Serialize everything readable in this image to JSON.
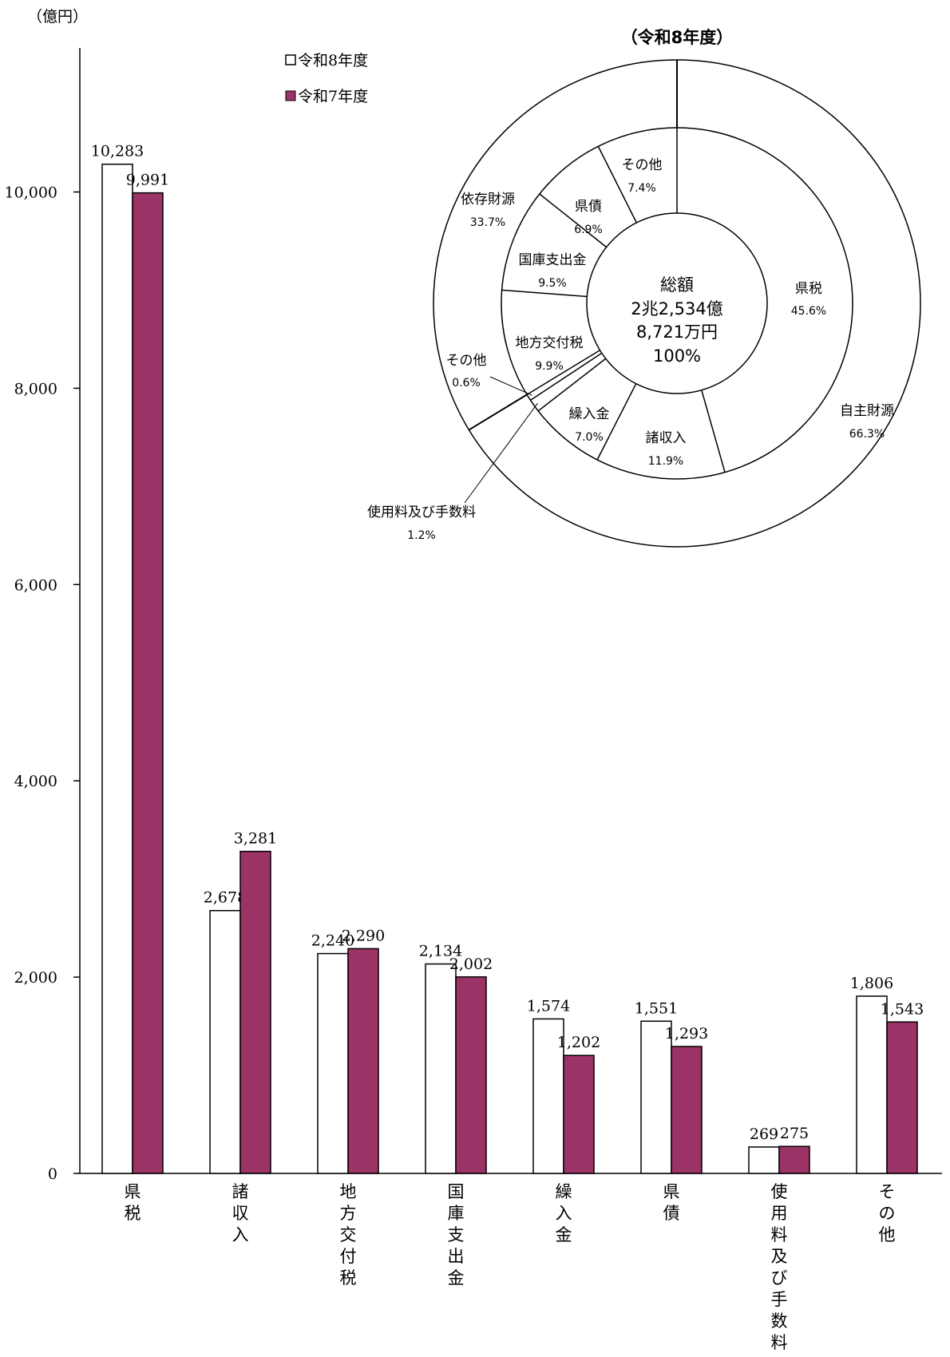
{
  "chart_data": [
    {
      "type": "bar",
      "unit_label": "（億円）",
      "categories": [
        "県税",
        "諸収入",
        "地方交付税",
        "国庫支出金",
        "繰入金",
        "県債",
        "使用料及び手数料",
        "その他"
      ],
      "series": [
        {
          "name": "令和8年度",
          "values": [
            10283,
            2678,
            2240,
            2134,
            1574,
            1551,
            269,
            1806
          ],
          "labels": [
            "10,283",
            "2,678",
            "2,240",
            "2,134",
            "1,574",
            "1,551",
            "269",
            "1,806"
          ],
          "color": "#ffffff"
        },
        {
          "name": "令和7年度",
          "values": [
            9991,
            3281,
            2290,
            2002,
            1202,
            1293,
            275,
            1543
          ],
          "labels": [
            "9,991",
            "3,281",
            "2,290",
            "2,002",
            "1,202",
            "1,293",
            "275",
            "1,543"
          ],
          "color": "#9b3366"
        }
      ],
      "ylim": [
        0,
        10500
      ],
      "yticks": [
        0,
        2000,
        4000,
        6000,
        8000,
        10000
      ],
      "ytick_labels": [
        "0",
        "2,000",
        "4,000",
        "6,000",
        "8,000",
        "10,000"
      ],
      "legend_position": "top",
      "grid": false
    },
    {
      "type": "pie",
      "title": "（令和8年度）",
      "center_label": {
        "line1": "総額",
        "line2": "2兆2,534億",
        "line3": "8,721万円",
        "line4": "100%"
      },
      "outer_ring": [
        {
          "name": "自主財源",
          "percent": 66.3,
          "label": "66.3%"
        },
        {
          "name": "依存財源",
          "percent": 33.7,
          "label": "33.7%"
        }
      ],
      "inner_ring": [
        {
          "name": "県税",
          "percent": 45.6,
          "label": "45.6%"
        },
        {
          "name": "諸収入",
          "percent": 11.9,
          "label": "11.9%"
        },
        {
          "name": "繰入金",
          "percent": 7.0,
          "label": "7.0%"
        },
        {
          "name": "使用料及び手数料",
          "percent": 1.2,
          "label": "1.2%"
        },
        {
          "name": "その他",
          "percent": 0.6,
          "label": "0.6%"
        },
        {
          "name": "地方交付税",
          "percent": 9.9,
          "label": "9.9%"
        },
        {
          "name": "国庫支出金",
          "percent": 9.5,
          "label": "9.5%"
        },
        {
          "name": "県債",
          "percent": 6.9,
          "label": "6.9%"
        },
        {
          "name": "その他",
          "percent": 7.4,
          "label": "7.4%"
        }
      ]
    }
  ]
}
